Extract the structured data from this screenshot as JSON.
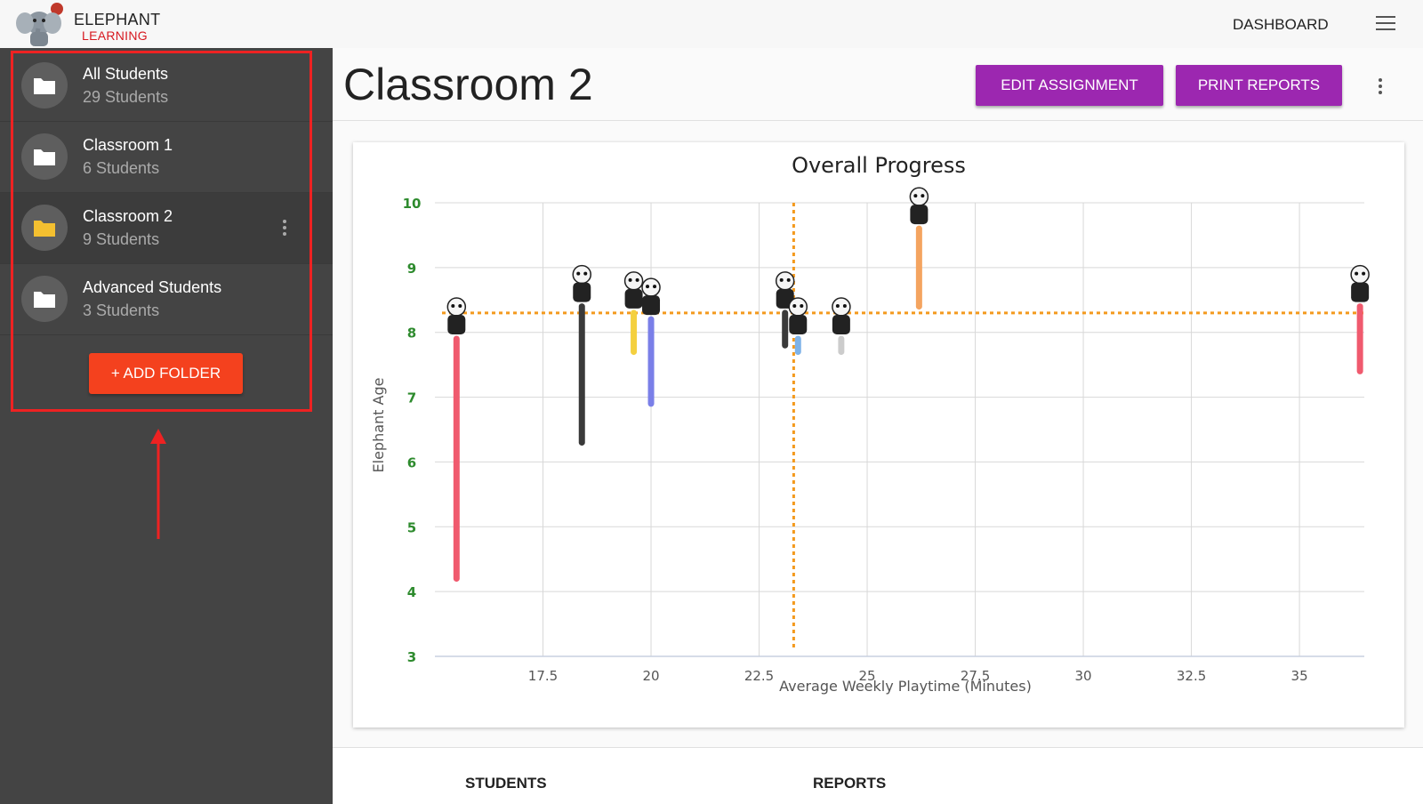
{
  "app": {
    "logo_line1": "ELEPHANT",
    "logo_line2": "LEARNING",
    "nav_dashboard": "DASHBOARD"
  },
  "sidebar": {
    "items": [
      {
        "name": "All Students",
        "count": "29 Students",
        "active": false
      },
      {
        "name": "Classroom 1",
        "count": "6 Students",
        "active": false
      },
      {
        "name": "Classroom 2",
        "count": "9 Students",
        "active": true
      },
      {
        "name": "Advanced Students",
        "count": "3 Students",
        "active": false
      }
    ],
    "add_folder_label": "+ ADD FOLDER"
  },
  "header": {
    "title": "Classroom 2",
    "edit_assignment_label": "EDIT ASSIGNMENT",
    "print_reports_label": "PRINT REPORTS"
  },
  "tabs": {
    "students": "STUDENTS",
    "reports": "REPORTS"
  },
  "colors": {
    "primary_purple": "#9c27b0",
    "accent_orange": "#f4411e",
    "folder_active": "#f4c030",
    "threshold_line": "#f49a1e"
  },
  "chart_data": {
    "type": "scatter",
    "title": "Overall Progress",
    "xlabel": "Average Weekly Playtime (Minutes)",
    "ylabel": "Elephant Age",
    "xlim": [
      15,
      36.5
    ],
    "ylim": [
      3,
      10
    ],
    "xticks": [
      "17.5",
      "20",
      "22.5",
      "25",
      "27.5",
      "30",
      "32.5",
      "35"
    ],
    "yticks": [
      "3",
      "4",
      "5",
      "6",
      "7",
      "8",
      "9",
      "10"
    ],
    "grid": true,
    "threshold_x": 23.3,
    "threshold_y": 8.3,
    "students": [
      {
        "avatar": "panda-icon",
        "x": 15.5,
        "age_start": 4.2,
        "age_now": 7.9,
        "color": "#f05a6e"
      },
      {
        "avatar": "rabbit-icon",
        "x": 18.4,
        "age_start": 6.3,
        "age_now": 8.4,
        "color": "#3a3a3a"
      },
      {
        "avatar": "panda-icon",
        "x": 19.6,
        "age_start": 7.7,
        "age_now": 8.3,
        "color": "#f4d03f"
      },
      {
        "avatar": "dinosaur-icon",
        "x": 20.0,
        "age_start": 6.9,
        "age_now": 8.2,
        "color": "#7a7fe8"
      },
      {
        "avatar": "panda-icon",
        "x": 23.1,
        "age_start": 7.8,
        "age_now": 8.3,
        "color": "#3a3a3a"
      },
      {
        "avatar": "elephant-icon",
        "x": 23.4,
        "age_start": 7.7,
        "age_now": 7.9,
        "color": "#7fb3e8"
      },
      {
        "avatar": "cat-icon",
        "x": 24.4,
        "age_start": 7.7,
        "age_now": 7.9,
        "color": "#cccccc"
      },
      {
        "avatar": "deer-icon",
        "x": 26.2,
        "age_start": 8.4,
        "age_now": 9.6,
        "color": "#f4a460"
      },
      {
        "avatar": "elephant-icon",
        "x": 36.4,
        "age_start": 7.4,
        "age_now": 8.4,
        "color": "#f05a6e"
      }
    ]
  }
}
